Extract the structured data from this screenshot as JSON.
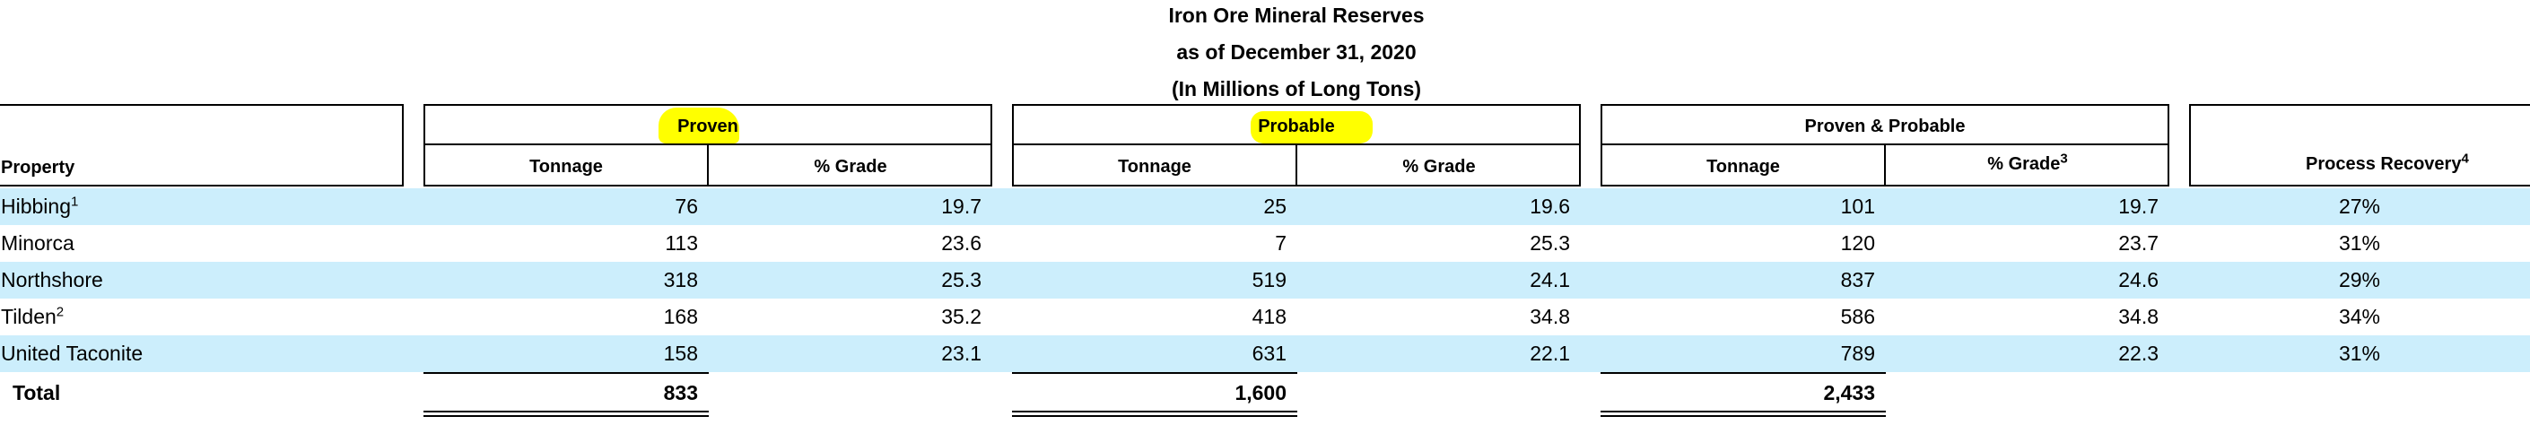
{
  "title": {
    "line1": "Iron Ore Mineral Reserves",
    "line2": "as of December 31, 2020",
    "line3": "(In Millions of Long Tons)"
  },
  "groups": {
    "proven": "Proven",
    "probable": "Probable",
    "proven_probable": "Proven & Probable"
  },
  "columns": {
    "property": "Property",
    "tonnage": "Tonnage",
    "grade": "% Grade",
    "grade_footnote": "3",
    "recovery": "Process Recovery",
    "recovery_footnote": "4"
  },
  "rows": [
    {
      "property": "Hibbing",
      "footnote": "1",
      "proven_tonnage": "76",
      "proven_grade": "19.7",
      "probable_tonnage": "25",
      "probable_grade": "19.6",
      "pp_tonnage": "101",
      "pp_grade": "19.7",
      "recovery": "27%"
    },
    {
      "property": "Minorca",
      "footnote": "",
      "proven_tonnage": "113",
      "proven_grade": "23.6",
      "probable_tonnage": "7",
      "probable_grade": "25.3",
      "pp_tonnage": "120",
      "pp_grade": "23.7",
      "recovery": "31%"
    },
    {
      "property": "Northshore",
      "footnote": "",
      "proven_tonnage": "318",
      "proven_grade": "25.3",
      "probable_tonnage": "519",
      "probable_grade": "24.1",
      "pp_tonnage": "837",
      "pp_grade": "24.6",
      "recovery": "29%"
    },
    {
      "property": "Tilden",
      "footnote": "2",
      "proven_tonnage": "168",
      "proven_grade": "35.2",
      "probable_tonnage": "418",
      "probable_grade": "34.8",
      "pp_tonnage": "586",
      "pp_grade": "34.8",
      "recovery": "34%"
    },
    {
      "property": "United Taconite",
      "footnote": "",
      "proven_tonnage": "158",
      "proven_grade": "23.1",
      "probable_tonnage": "631",
      "probable_grade": "22.1",
      "pp_tonnage": "789",
      "pp_grade": "22.3",
      "recovery": "31%"
    }
  ],
  "total": {
    "label": "Total",
    "proven_tonnage": "833",
    "probable_tonnage": "1,600",
    "pp_tonnage": "2,433"
  },
  "colors": {
    "row_shade": "#cceefc",
    "highlight": "#ffff00"
  }
}
